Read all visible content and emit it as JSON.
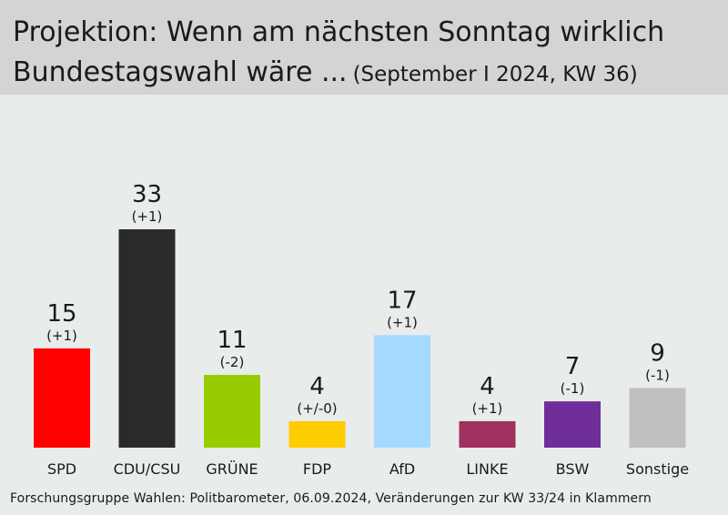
{
  "header": {
    "title_line1": "Projektion: Wenn am nächsten Sonntag wirklich",
    "title_line2": "Bundestagswahl wäre ...",
    "subtitle": "(September I 2024, KW 36)"
  },
  "footer": {
    "source": "Forschungsgruppe Wahlen: Politbarometer, 06.09.2024, Veränderungen zur KW 33/24 in Klammern"
  },
  "chart_data": {
    "type": "bar",
    "title": "Projektion: Wenn am nächsten Sonntag wirklich Bundestagswahl wäre ...",
    "subtitle": "(September I 2024, KW 36)",
    "categories": [
      "SPD",
      "CDU/CSU",
      "GRÜNE",
      "FDP",
      "AfD",
      "LINKE",
      "BSW",
      "Sonstige"
    ],
    "values": [
      15,
      33,
      11,
      4,
      17,
      4,
      7,
      9
    ],
    "changes": [
      "(+1)",
      "(+1)",
      "(-2)",
      "(+/-0)",
      "(+1)",
      "(+1)",
      "(-1)",
      "(-1)"
    ],
    "colors": [
      "#ff0000",
      "#2a2a2a",
      "#99cc00",
      "#ffcc00",
      "#a6d9ff",
      "#a0305e",
      "#6f2d9a",
      "#c0c0c0"
    ],
    "ylim": [
      0,
      33
    ],
    "grid": false,
    "legend": "none",
    "xlabel": "",
    "ylabel": ""
  }
}
